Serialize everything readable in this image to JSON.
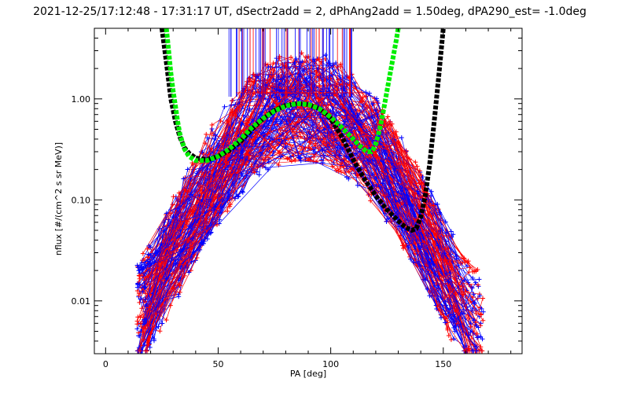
{
  "chart_data": {
    "type": "line",
    "title": "2021-12-25/17:12:48 - 17:31:17 UT, dSectr2add = 2, dPhAng2add = 1.50deg, dPA290_est=  -1.0deg",
    "xlabel": "PA [deg]",
    "ylabel": "nflux [#/(cm^2 s sr MeV)]",
    "xlim": [
      -5,
      185
    ],
    "ylim": [
      0.003,
      5.0
    ],
    "yscale": "log",
    "x_ticks": [
      0,
      50,
      100,
      150
    ],
    "x_tick_labels": [
      "0",
      "50",
      "100",
      "150"
    ],
    "y_ticks": [
      0.01,
      0.1,
      1.0
    ],
    "y_tick_labels": [
      "0.01",
      "0.10",
      "1.00"
    ],
    "grid": false,
    "legend": "none",
    "colors": {
      "red": "#ff0000",
      "blue": "#0000ff",
      "black": "#000000",
      "green": "#00ee00"
    },
    "series": [
      {
        "style": "fit-black",
        "color": "#000000",
        "x": [
          25,
          27,
          29,
          31,
          33,
          35,
          37,
          40,
          45,
          50,
          55,
          60,
          65,
          70,
          75,
          80,
          85,
          90,
          95,
          100,
          105,
          110,
          115,
          120,
          125,
          130,
          133,
          136,
          138,
          140,
          142,
          144,
          146,
          148,
          150
        ],
        "y": [
          5.0,
          2.3,
          1.0,
          0.6,
          0.42,
          0.33,
          0.29,
          0.26,
          0.25,
          0.27,
          0.31,
          0.38,
          0.5,
          0.64,
          0.77,
          0.86,
          0.9,
          0.88,
          0.8,
          0.64,
          0.42,
          0.25,
          0.16,
          0.11,
          0.08,
          0.062,
          0.054,
          0.05,
          0.052,
          0.068,
          0.11,
          0.23,
          0.6,
          1.7,
          5.0
        ]
      },
      {
        "style": "fit-green",
        "color": "#00ee00",
        "x": [
          27,
          28,
          29,
          30,
          31,
          32,
          33,
          35,
          37,
          40,
          45,
          50,
          55,
          60,
          65,
          70,
          75,
          80,
          85,
          90,
          95,
          100,
          105,
          110,
          113,
          116,
          118,
          119,
          120,
          121,
          122,
          123,
          124,
          125,
          126,
          127,
          128,
          129,
          130
        ],
        "y": [
          5.0,
          3.0,
          1.8,
          1.2,
          0.85,
          0.6,
          0.45,
          0.32,
          0.27,
          0.245,
          0.245,
          0.27,
          0.32,
          0.4,
          0.52,
          0.64,
          0.76,
          0.85,
          0.9,
          0.88,
          0.8,
          0.66,
          0.52,
          0.4,
          0.34,
          0.3,
          0.3,
          0.32,
          0.36,
          0.43,
          0.53,
          0.68,
          0.9,
          1.2,
          1.6,
          2.1,
          2.8,
          3.7,
          5.0
        ]
      }
    ]
  }
}
